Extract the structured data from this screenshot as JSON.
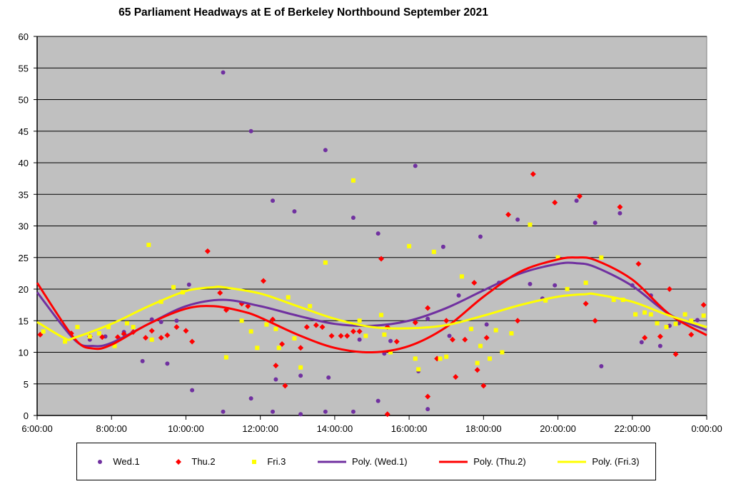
{
  "chart_data": {
    "type": "scatter",
    "title": "65 Parliament Headways at E of Berkeley Northbound September 2021",
    "xlabel": "",
    "ylabel": "",
    "xlim": [
      "6:00:00",
      "0:00:00"
    ],
    "ylim": [
      0,
      60
    ],
    "grid": true,
    "legend_placement": "bottom",
    "x_ticks": [
      "6:00:00",
      "8:00:00",
      "10:00:00",
      "12:00:00",
      "14:00:00",
      "16:00:00",
      "18:00:00",
      "20:00:00",
      "22:00:00",
      "0:00:00"
    ],
    "y_ticks": [
      "0",
      "5",
      "10",
      "15",
      "20",
      "25",
      "30",
      "35",
      "40",
      "45",
      "50",
      "55",
      "60"
    ],
    "plot_background": "#c0c0c0",
    "series": [
      {
        "name": "Wed.1",
        "marker": "circle",
        "color": "#7030a0",
        "points": [
          [
            "6:55",
            13
          ],
          [
            "7:25",
            12
          ],
          [
            "7:50",
            12.5
          ],
          [
            "8:20",
            13.2
          ],
          [
            "8:35",
            14
          ],
          [
            "8:50",
            8.6
          ],
          [
            "9:05",
            15.2
          ],
          [
            "9:20",
            14.8
          ],
          [
            "9:30",
            8.2
          ],
          [
            "9:45",
            15
          ],
          [
            "10:05",
            20.7
          ],
          [
            "10:10",
            4
          ],
          [
            "11:00",
            54.3
          ],
          [
            "11:00",
            0.6
          ],
          [
            "11:45",
            45
          ],
          [
            "11:45",
            2.7
          ],
          [
            "12:20",
            34
          ],
          [
            "12:20",
            0.6
          ],
          [
            "12:25",
            5.7
          ],
          [
            "12:55",
            32.3
          ],
          [
            "13:05",
            6.3
          ],
          [
            "13:05",
            0.2
          ],
          [
            "13:45",
            42
          ],
          [
            "13:45",
            0.6
          ],
          [
            "13:50",
            6
          ],
          [
            "14:30",
            31.3
          ],
          [
            "14:30",
            0.6
          ],
          [
            "14:40",
            12
          ],
          [
            "15:10",
            28.8
          ],
          [
            "15:10",
            2.3
          ],
          [
            "15:20",
            9.8
          ],
          [
            "15:30",
            11.8
          ],
          [
            "16:10",
            39.5
          ],
          [
            "16:15",
            7
          ],
          [
            "16:30",
            1
          ],
          [
            "16:30",
            15.3
          ],
          [
            "16:55",
            26.7
          ],
          [
            "17:05",
            12.6
          ],
          [
            "17:20",
            19
          ],
          [
            "17:55",
            28.3
          ],
          [
            "18:05",
            14.4
          ],
          [
            "18:25",
            21
          ],
          [
            "18:55",
            31
          ],
          [
            "19:15",
            20.8
          ],
          [
            "19:35",
            18.5
          ],
          [
            "19:55",
            20.6
          ],
          [
            "20:30",
            34
          ],
          [
            "21:00",
            30.5
          ],
          [
            "21:10",
            7.8
          ],
          [
            "21:40",
            32
          ],
          [
            "22:00",
            20.6
          ],
          [
            "22:15",
            11.6
          ],
          [
            "22:30",
            19
          ],
          [
            "22:45",
            11
          ],
          [
            "23:00",
            14.2
          ],
          [
            "23:15",
            14.6
          ],
          [
            "23:45",
            15.1
          ]
        ]
      },
      {
        "name": "Thu.2",
        "marker": "diamond",
        "color": "#ff0000",
        "points": [
          [
            "6:05",
            12.8
          ],
          [
            "6:55",
            13
          ],
          [
            "7:25",
            12.5
          ],
          [
            "7:45",
            12.4
          ],
          [
            "8:10",
            12.4
          ],
          [
            "8:20",
            12.9
          ],
          [
            "8:35",
            13.2
          ],
          [
            "8:55",
            12.3
          ],
          [
            "9:05",
            13.4
          ],
          [
            "9:20",
            12.3
          ],
          [
            "9:30",
            12.7
          ],
          [
            "9:45",
            14
          ],
          [
            "10:00",
            13.4
          ],
          [
            "10:10",
            11.7
          ],
          [
            "10:35",
            26
          ],
          [
            "10:55",
            19.4
          ],
          [
            "11:05",
            16.7
          ],
          [
            "11:30",
            17.7
          ],
          [
            "11:40",
            17.3
          ],
          [
            "12:05",
            21.3
          ],
          [
            "12:20",
            15.2
          ],
          [
            "12:25",
            7.9
          ],
          [
            "12:35",
            11.3
          ],
          [
            "12:40",
            4.7
          ],
          [
            "13:05",
            10.7
          ],
          [
            "13:15",
            14
          ],
          [
            "13:30",
            14.3
          ],
          [
            "13:40",
            14
          ],
          [
            "13:55",
            12.6
          ],
          [
            "14:10",
            12.6
          ],
          [
            "14:20",
            12.6
          ],
          [
            "14:30",
            13.3
          ],
          [
            "14:40",
            13.3
          ],
          [
            "15:15",
            24.8
          ],
          [
            "15:25",
            14
          ],
          [
            "15:25",
            0.2
          ],
          [
            "15:40",
            11.7
          ],
          [
            "16:10",
            14.7
          ],
          [
            "16:30",
            17
          ],
          [
            "16:30",
            3
          ],
          [
            "16:45",
            9
          ],
          [
            "17:00",
            15
          ],
          [
            "17:10",
            12
          ],
          [
            "17:15",
            6.1
          ],
          [
            "17:30",
            12
          ],
          [
            "17:45",
            21
          ],
          [
            "17:50",
            7.2
          ],
          [
            "18:00",
            4.7
          ],
          [
            "18:05",
            12.3
          ],
          [
            "18:40",
            31.8
          ],
          [
            "18:55",
            15
          ],
          [
            "19:20",
            38.2
          ],
          [
            "19:55",
            33.7
          ],
          [
            "20:35",
            34.7
          ],
          [
            "20:45",
            17.7
          ],
          [
            "21:00",
            15
          ],
          [
            "21:40",
            33
          ],
          [
            "22:10",
            24
          ],
          [
            "22:20",
            12.3
          ],
          [
            "22:45",
            12.5
          ],
          [
            "23:00",
            20
          ],
          [
            "23:10",
            9.7
          ],
          [
            "23:35",
            12.8
          ],
          [
            "23:55",
            17.5
          ]
        ]
      },
      {
        "name": "Fri.3",
        "marker": "square",
        "color": "#ffff00",
        "points": [
          [
            "6:10",
            13.3
          ],
          [
            "6:45",
            11.7
          ],
          [
            "7:05",
            14
          ],
          [
            "7:25",
            12.5
          ],
          [
            "7:40",
            13
          ],
          [
            "7:55",
            14
          ],
          [
            "8:05",
            11
          ],
          [
            "8:25",
            14.6
          ],
          [
            "8:35",
            14
          ],
          [
            "9:00",
            27
          ],
          [
            "9:05",
            12
          ],
          [
            "9:20",
            18
          ],
          [
            "9:40",
            20.3
          ],
          [
            "9:55",
            19.5
          ],
          [
            "11:05",
            9.2
          ],
          [
            "11:30",
            15
          ],
          [
            "11:45",
            13.3
          ],
          [
            "11:55",
            10.7
          ],
          [
            "12:10",
            14.4
          ],
          [
            "12:25",
            13.7
          ],
          [
            "12:30",
            10.7
          ],
          [
            "12:45",
            18.7
          ],
          [
            "12:55",
            12.2
          ],
          [
            "13:05",
            7.6
          ],
          [
            "13:20",
            17.3
          ],
          [
            "13:45",
            24.2
          ],
          [
            "14:30",
            37.2
          ],
          [
            "14:40",
            15
          ],
          [
            "14:50",
            12.6
          ],
          [
            "15:15",
            15.9
          ],
          [
            "15:20",
            12.8
          ],
          [
            "15:30",
            10
          ],
          [
            "16:00",
            26.8
          ],
          [
            "16:10",
            9
          ],
          [
            "16:15",
            7.3
          ],
          [
            "16:40",
            25.9
          ],
          [
            "16:50",
            9
          ],
          [
            "17:00",
            9.3
          ],
          [
            "17:25",
            22
          ],
          [
            "17:40",
            13.7
          ],
          [
            "17:50",
            8.3
          ],
          [
            "17:55",
            11
          ],
          [
            "18:10",
            9
          ],
          [
            "18:20",
            13.5
          ],
          [
            "18:30",
            10
          ],
          [
            "18:45",
            13
          ],
          [
            "19:15",
            30.2
          ],
          [
            "19:40",
            18.2
          ],
          [
            "20:00",
            25
          ],
          [
            "20:15",
            20
          ],
          [
            "20:45",
            21
          ],
          [
            "21:10",
            25
          ],
          [
            "21:30",
            18.3
          ],
          [
            "21:45",
            18.3
          ],
          [
            "22:05",
            16
          ],
          [
            "22:20",
            16.3
          ],
          [
            "22:30",
            16
          ],
          [
            "22:40",
            14.6
          ],
          [
            "22:55",
            14
          ],
          [
            "23:10",
            14.5
          ],
          [
            "23:25",
            16
          ],
          [
            "23:35",
            15
          ],
          [
            "23:55",
            15.8
          ]
        ]
      }
    ],
    "trendlines": [
      {
        "name": "Poly. (Wed.1)",
        "color": "#7030a0",
        "points": [
          [
            "6:00",
            19.5
          ],
          [
            "7:00",
            12
          ],
          [
            "7:30",
            11
          ],
          [
            "8:00",
            11.5
          ],
          [
            "9:00",
            14.5
          ],
          [
            "10:00",
            17.3
          ],
          [
            "11:00",
            18.3
          ],
          [
            "12:00",
            17.3
          ],
          [
            "13:00",
            15.8
          ],
          [
            "14:00",
            14.5
          ],
          [
            "15:00",
            14.2
          ],
          [
            "16:00",
            15
          ],
          [
            "17:00",
            17
          ],
          [
            "18:00",
            19.8
          ],
          [
            "19:00",
            22.5
          ],
          [
            "20:00",
            24
          ],
          [
            "20:30",
            24.1
          ],
          [
            "21:00",
            23.5
          ],
          [
            "22:00",
            20.5
          ],
          [
            "23:00",
            16
          ],
          [
            "24:00",
            13.5
          ]
        ]
      },
      {
        "name": "Poly. (Thu.2)",
        "color": "#ff0000",
        "points": [
          [
            "6:00",
            21
          ],
          [
            "7:00",
            12.2
          ],
          [
            "7:30",
            10.6
          ],
          [
            "8:00",
            11.2
          ],
          [
            "9:00",
            14.5
          ],
          [
            "10:00",
            16.9
          ],
          [
            "10:45",
            17.3
          ],
          [
            "11:30",
            16.5
          ],
          [
            "12:00",
            15.5
          ],
          [
            "13:00",
            12.8
          ],
          [
            "14:00",
            10.7
          ],
          [
            "15:00",
            10
          ],
          [
            "16:00",
            11
          ],
          [
            "17:00",
            14
          ],
          [
            "18:00",
            18.8
          ],
          [
            "19:00",
            22.8
          ],
          [
            "20:00",
            24.7
          ],
          [
            "20:30",
            25
          ],
          [
            "21:00",
            24.6
          ],
          [
            "22:00",
            21.5
          ],
          [
            "23:00",
            16
          ],
          [
            "24:00",
            12.7
          ]
        ]
      },
      {
        "name": "Poly. (Fri.3)",
        "color": "#ffff00",
        "points": [
          [
            "6:00",
            14.8
          ],
          [
            "6:45",
            12.2
          ],
          [
            "7:00",
            12.3
          ],
          [
            "8:00",
            14.5
          ],
          [
            "9:00",
            17.3
          ],
          [
            "10:00",
            19.7
          ],
          [
            "10:45",
            20.3
          ],
          [
            "11:00",
            20.3
          ],
          [
            "12:00",
            19.3
          ],
          [
            "13:00",
            17.3
          ],
          [
            "14:00",
            15.3
          ],
          [
            "15:00",
            14
          ],
          [
            "16:00",
            13.8
          ],
          [
            "17:00",
            14.3
          ],
          [
            "18:00",
            15.8
          ],
          [
            "19:00",
            17.5
          ],
          [
            "20:00",
            18.8
          ],
          [
            "20:45",
            19.2
          ],
          [
            "21:00",
            19.2
          ],
          [
            "22:00",
            18
          ],
          [
            "23:00",
            15.8
          ],
          [
            "24:00",
            14
          ]
        ]
      }
    ]
  }
}
